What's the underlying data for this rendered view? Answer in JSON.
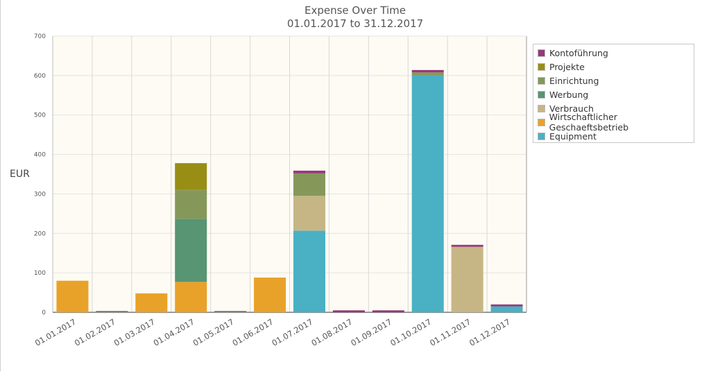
{
  "title_line1": "Expense Over Time",
  "title_line2": "01.01.2017 to 31.12.2017",
  "chart_data": {
    "type": "bar",
    "stacked": true,
    "title": "Expense Over Time",
    "subtitle": "01.01.2017 to 31.12.2017",
    "xlabel": "",
    "ylabel": "EUR",
    "ylim": [
      0,
      700
    ],
    "yticks": [
      0,
      100,
      200,
      300,
      400,
      500,
      600,
      700
    ],
    "categories": [
      "01.01.2017",
      "01.02.2017",
      "01.03.2017",
      "01.04.2017",
      "01.05.2017",
      "01.06.2017",
      "01.07.2017",
      "01.08.2017",
      "01.09.2017",
      "01.10.2017",
      "01.11.2017",
      "01.12.2017"
    ],
    "grid": true,
    "legend_position": "right",
    "series": [
      {
        "name": "Equipment",
        "color": "#4ab0c4",
        "values": [
          0,
          0,
          0,
          0,
          0,
          0,
          207,
          0,
          0,
          600,
          0,
          15
        ]
      },
      {
        "name": "Wirtschaftlicher Geschaeftsbetrieb",
        "color": "#e9a229",
        "values": [
          80,
          0,
          48,
          77,
          0,
          88,
          0,
          0,
          0,
          0,
          0,
          0
        ]
      },
      {
        "name": "Verbrauch",
        "color": "#c6b685",
        "values": [
          0,
          0,
          0,
          0,
          0,
          0,
          88,
          0,
          0,
          0,
          166,
          0
        ]
      },
      {
        "name": "Werbung",
        "color": "#579573",
        "values": [
          0,
          0,
          0,
          160,
          0,
          0,
          0,
          0,
          0,
          0,
          0,
          0
        ]
      },
      {
        "name": "Einrichtung",
        "color": "#85985a",
        "values": [
          0,
          0,
          0,
          73,
          0,
          0,
          57,
          0,
          0,
          8,
          0,
          0
        ]
      },
      {
        "name": "Projekte",
        "color": "#988e16",
        "values": [
          0,
          0,
          0,
          68,
          0,
          0,
          0,
          0,
          0,
          0,
          0,
          0
        ]
      },
      {
        "name": "Kontoführung",
        "color": "#96397a",
        "values": [
          0,
          0,
          0,
          0,
          0,
          0,
          7,
          5,
          5,
          6,
          5,
          5
        ]
      }
    ],
    "legend_order": [
      "Kontoführung",
      "Projekte",
      "Einrichtung",
      "Werbung",
      "Verbrauch",
      "Wirtschaftlicher Geschaeftsbetrieb",
      "Equipment"
    ]
  }
}
